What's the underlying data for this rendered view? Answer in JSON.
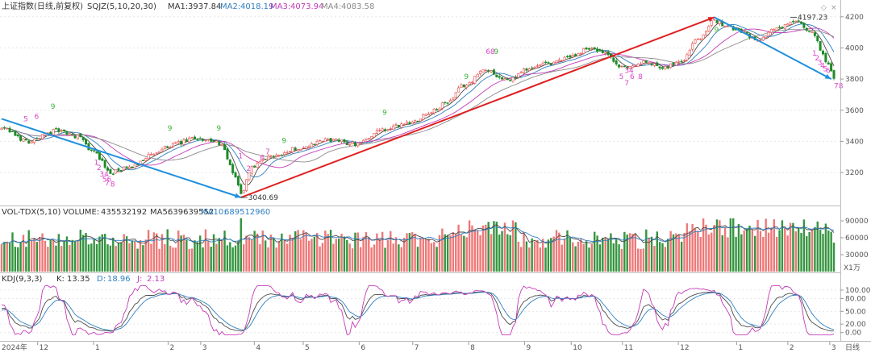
{
  "colors": {
    "up": "#e84b4b",
    "down": "#1e8a2a",
    "ma1": "#4a4a4a",
    "ma2": "#2f7fc0",
    "ma3": "#c43ab9",
    "ma4": "#8a8a8a",
    "trend_up": "#e02020",
    "trend_down": "#1f8fdc",
    "td_label": "#d946c8",
    "td_nine": "#3db33d",
    "grid": "#e6e6e6",
    "axis_text": "#555555"
  },
  "chart_data": [
    {
      "type": "candlestick",
      "title": "上证指数(日线,前复权)",
      "indicator": "SQJZ(5,10,20,30)",
      "legend": [
        {
          "label": "MA1:",
          "value": "3937.84"
        },
        {
          "label": "MA2:",
          "value": "4018.19"
        },
        {
          "label": "MA3:",
          "value": "4073.94"
        },
        {
          "label": "MA4:",
          "value": "4083.58"
        }
      ],
      "ylim": [
        3040,
        4230
      ],
      "yticks": [
        "4200",
        "4000",
        "3800",
        "3600",
        "3400",
        "3200"
      ],
      "anchor_points": [
        {
          "i": 0,
          "v": 3480
        },
        {
          "i": 10,
          "v": 3400
        },
        {
          "i": 20,
          "v": 3470
        },
        {
          "i": 28,
          "v": 3430
        },
        {
          "i": 34,
          "v": 3330
        },
        {
          "i": 40,
          "v": 3200
        },
        {
          "i": 46,
          "v": 3225
        },
        {
          "i": 55,
          "v": 3310
        },
        {
          "i": 63,
          "v": 3380
        },
        {
          "i": 72,
          "v": 3420
        },
        {
          "i": 80,
          "v": 3390
        },
        {
          "i": 86,
          "v": 3180
        },
        {
          "i": 88,
          "v": 3060
        },
        {
          "i": 92,
          "v": 3235
        },
        {
          "i": 100,
          "v": 3310
        },
        {
          "i": 110,
          "v": 3360
        },
        {
          "i": 120,
          "v": 3410
        },
        {
          "i": 130,
          "v": 3385
        },
        {
          "i": 140,
          "v": 3470
        },
        {
          "i": 150,
          "v": 3520
        },
        {
          "i": 158,
          "v": 3590
        },
        {
          "i": 164,
          "v": 3650
        },
        {
          "i": 170,
          "v": 3760
        },
        {
          "i": 178,
          "v": 3860
        },
        {
          "i": 186,
          "v": 3790
        },
        {
          "i": 194,
          "v": 3870
        },
        {
          "i": 202,
          "v": 3900
        },
        {
          "i": 210,
          "v": 3950
        },
        {
          "i": 216,
          "v": 4000
        },
        {
          "i": 222,
          "v": 3960
        },
        {
          "i": 228,
          "v": 3870
        },
        {
          "i": 236,
          "v": 3905
        },
        {
          "i": 244,
          "v": 3880
        },
        {
          "i": 250,
          "v": 3920
        },
        {
          "i": 256,
          "v": 4060
        },
        {
          "i": 262,
          "v": 4170
        },
        {
          "i": 270,
          "v": 4120
        },
        {
          "i": 278,
          "v": 4060
        },
        {
          "i": 286,
          "v": 4130
        },
        {
          "i": 292,
          "v": 4170
        },
        {
          "i": 298,
          "v": 4090
        },
        {
          "i": 304,
          "v": 3900
        },
        {
          "i": 306,
          "v": 3810
        }
      ],
      "bar_count": 307,
      "annotations": [
        {
          "text": "3040.69",
          "i": 88,
          "v": 3040
        },
        {
          "text": "4197.23",
          "i": 290,
          "v": 4197
        }
      ],
      "trend_lines": [
        {
          "color": "trend_down",
          "from": {
            "i": 0,
            "v": 3545
          },
          "to": {
            "i": 88,
            "v": 3040
          }
        },
        {
          "color": "trend_up",
          "from": {
            "i": 88,
            "v": 3040
          },
          "to": {
            "i": 262,
            "v": 4197
          }
        },
        {
          "color": "trend_down",
          "from": {
            "i": 262,
            "v": 4197
          },
          "to": {
            "i": 305,
            "v": 3800
          }
        }
      ],
      "td_labels": [
        {
          "text": "9",
          "i": 18,
          "v": 3610,
          "kind": "nine"
        },
        {
          "text": "5",
          "i": 8,
          "v": 3530
        },
        {
          "text": "6",
          "i": 12,
          "v": 3545
        },
        {
          "text": "1",
          "i": 34,
          "v": 3250
        },
        {
          "text": "2",
          "i": 35,
          "v": 3215
        },
        {
          "text": "34",
          "i": 36,
          "v": 3175
        },
        {
          "text": "56",
          "i": 37,
          "v": 3140
        },
        {
          "text": "7",
          "i": 38,
          "v": 3118
        },
        {
          "text": "8",
          "i": 40,
          "v": 3110
        },
        {
          "text": "9",
          "i": 61,
          "v": 3470,
          "kind": "nine"
        },
        {
          "text": "9",
          "i": 79,
          "v": 3470,
          "kind": "nine"
        },
        {
          "text": "1",
          "i": 87,
          "v": 3290
        },
        {
          "text": "2",
          "i": 90,
          "v": 3210
        },
        {
          "text": "6",
          "i": 95,
          "v": 3280
        },
        {
          "text": "7",
          "i": 97,
          "v": 3320
        },
        {
          "text": "9",
          "i": 103,
          "v": 3390,
          "kind": "nine"
        },
        {
          "text": "9",
          "i": 140,
          "v": 3570,
          "kind": "nine"
        },
        {
          "text": "9",
          "i": 170,
          "v": 3800,
          "kind": "nine"
        },
        {
          "text": "68",
          "i": 178,
          "v": 3960
        },
        {
          "text": "9",
          "i": 181,
          "v": 3960,
          "kind": "nine"
        },
        {
          "text": "34",
          "i": 229,
          "v": 3840
        },
        {
          "text": "5",
          "i": 227,
          "v": 3800
        },
        {
          "text": "6",
          "i": 231,
          "v": 3800
        },
        {
          "text": "7",
          "i": 229,
          "v": 3760
        },
        {
          "text": "8",
          "i": 234,
          "v": 3800
        },
        {
          "text": "9",
          "i": 262,
          "v": 4100,
          "kind": "nine"
        },
        {
          "text": "1",
          "i": 298,
          "v": 3950
        },
        {
          "text": "2",
          "i": 299,
          "v": 3920
        },
        {
          "text": "3",
          "i": 300,
          "v": 3890
        },
        {
          "text": "4",
          "i": 301,
          "v": 3870
        },
        {
          "text": "5",
          "i": 302,
          "v": 3850
        },
        {
          "text": "6",
          "i": 303,
          "v": 3840
        },
        {
          "text": "78",
          "i": 306,
          "v": 3740
        }
      ]
    },
    {
      "type": "bar",
      "title": "VOL-TDX(5,10)",
      "legend": [
        {
          "label": "VOLUME:",
          "value": "435532192"
        },
        {
          "label": "MA5:",
          "value": "639639552"
        },
        {
          "label": "MA10:",
          "value": "689512960"
        }
      ],
      "ylim": [
        0,
        100000
      ],
      "yticks": [
        "90000",
        "60000",
        "30000"
      ],
      "unit": "X1万"
    },
    {
      "type": "line",
      "title": "KDJ(9,3,3)",
      "legend": [
        {
          "label": "K:",
          "value": "13.35"
        },
        {
          "label": "D:",
          "value": "18.96"
        },
        {
          "label": "J:",
          "value": "2.13"
        }
      ],
      "ylim": [
        -10,
        115
      ],
      "yticks": [
        "100.00",
        "80.00",
        "50.00",
        "20.00",
        "0.00"
      ]
    }
  ],
  "time_axis": {
    "start_label": "2024年",
    "labels": [
      {
        "text": "12",
        "i": 12
      },
      {
        "text": "1",
        "i": 36
      },
      {
        "text": "2",
        "i": 68
      },
      {
        "text": "3",
        "i": 82
      },
      {
        "text": "4",
        "i": 105
      },
      {
        "text": "5",
        "i": 126
      },
      {
        "text": "6",
        "i": 150
      },
      {
        "text": "7",
        "i": 173
      },
      {
        "text": "8",
        "i": 197
      },
      {
        "text": "9",
        "i": 221
      },
      {
        "text": "10",
        "i": 241
      },
      {
        "text": "11",
        "i": 263
      },
      {
        "text": "12",
        "i": 287
      },
      {
        "text": "1",
        "i": 312
      },
      {
        "text": "2",
        "i": 334
      },
      {
        "text": "3",
        "i": 352
      }
    ],
    "period": "日线"
  }
}
